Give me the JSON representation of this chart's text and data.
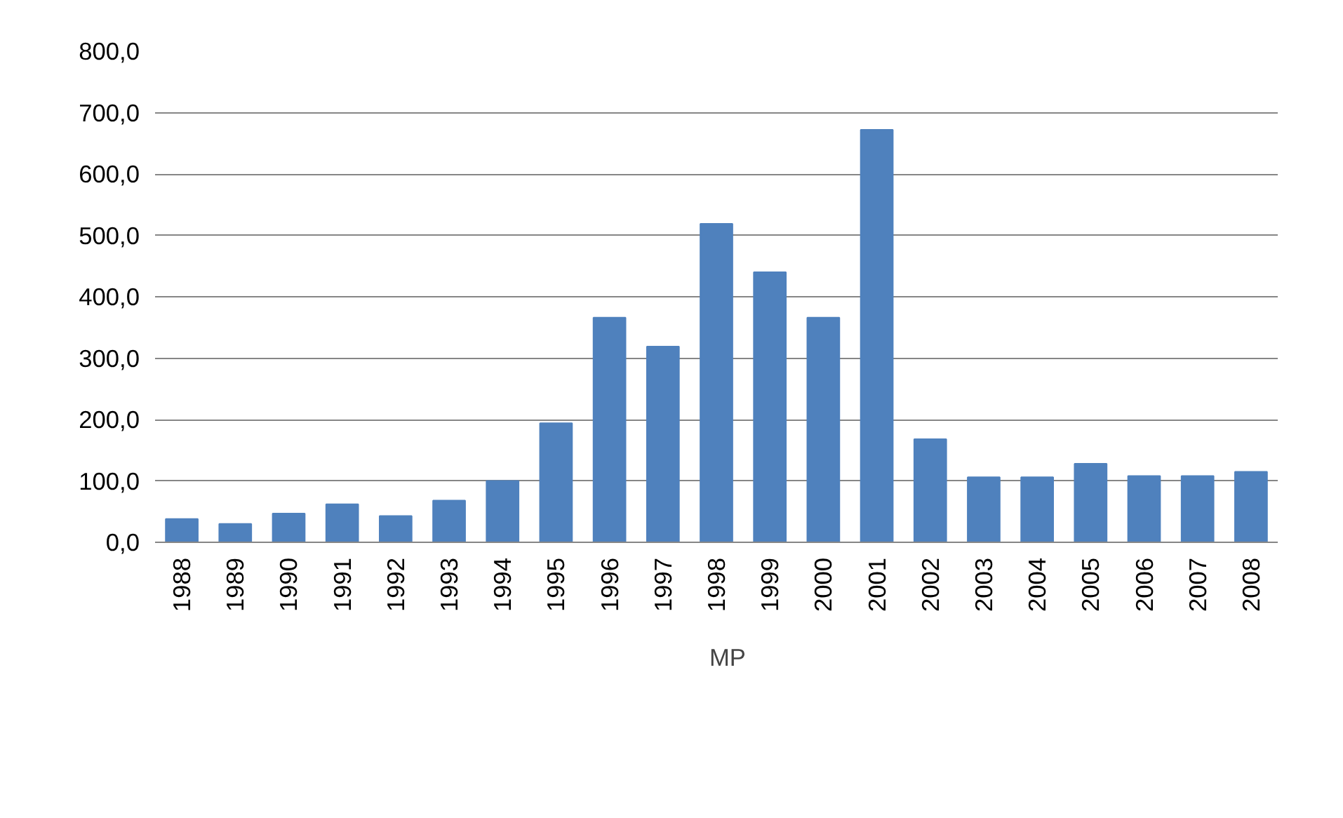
{
  "chart_data": {
    "type": "bar",
    "categories": [
      "1988",
      "1989",
      "1990",
      "1991",
      "1992",
      "1993",
      "1994",
      "1995",
      "1996",
      "1997",
      "1998",
      "1999",
      "2000",
      "2001",
      "2002",
      "2003",
      "2004",
      "2005",
      "2006",
      "2007",
      "2008"
    ],
    "series": [
      {
        "name": "MP",
        "color": "#4f81bd",
        "values": [
          38,
          30,
          47,
          62,
          43,
          68,
          100,
          194,
          366,
          319,
          519,
          440,
          366,
          672,
          168,
          106,
          106,
          128,
          108,
          108,
          115
        ]
      }
    ],
    "ylim": [
      0,
      800
    ],
    "yticks": [
      {
        "value": 0,
        "label": "0,0"
      },
      {
        "value": 100,
        "label": "100,0"
      },
      {
        "value": 200,
        "label": "200,0"
      },
      {
        "value": 300,
        "label": "300,0"
      },
      {
        "value": 400,
        "label": "400,0"
      },
      {
        "value": 500,
        "label": "500,0"
      },
      {
        "value": 600,
        "label": "600,0"
      },
      {
        "value": 700,
        "label": "700,0"
      },
      {
        "value": 800,
        "label": "800,0"
      }
    ],
    "grid": "y",
    "legend": "bottom"
  }
}
